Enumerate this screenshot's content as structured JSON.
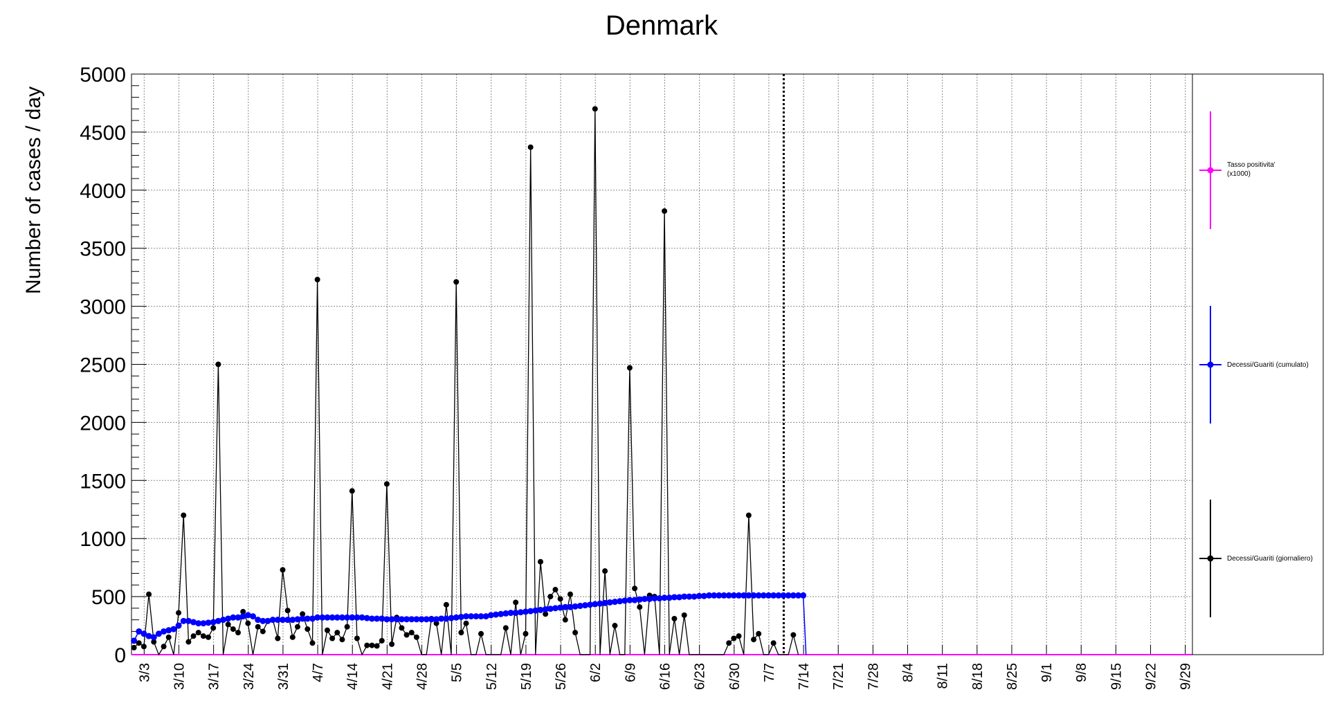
{
  "chart_data": {
    "type": "line",
    "title": "Denmark",
    "ylabel": "Number of cases / day",
    "xlabel": "",
    "ylim": [
      0,
      5000
    ],
    "y_ticks": [
      0,
      500,
      1000,
      1500,
      2000,
      2500,
      3000,
      3500,
      4000,
      4500,
      5000
    ],
    "grid": true,
    "x_tick_labels": [
      "3/3",
      "3/10",
      "3/17",
      "3/24",
      "3/31",
      "4/7",
      "4/14",
      "4/21",
      "4/28",
      "5/5",
      "5/12",
      "5/19",
      "5/26",
      "6/2",
      "6/9",
      "6/16",
      "6/23",
      "6/30",
      "7/7",
      "7/14",
      "7/21",
      "7/28",
      "8/4",
      "8/11",
      "8/18",
      "8/25",
      "9/1",
      "9/8",
      "9/15",
      "9/22",
      "9/29"
    ],
    "x_start": "3/1",
    "vertical_marker": "7/10",
    "legend_position": "right",
    "legend": [
      {
        "label": "Tasso positivita' (x1000)",
        "color": "#ff00ff"
      },
      {
        "label": "Decessi/Guariti (cumulato)",
        "color": "#0000ff"
      },
      {
        "label": "Decessi/Guariti (giornaliero)",
        "color": "#000000"
      }
    ],
    "series": [
      {
        "name": "Decessi/Guariti (giornaliero)",
        "color": "#000000",
        "values": [
          60,
          100,
          70,
          520,
          110,
          0,
          70,
          150,
          0,
          360,
          1200,
          110,
          160,
          190,
          160,
          150,
          230,
          2500,
          0,
          260,
          220,
          190,
          370,
          270,
          0,
          240,
          200,
          290,
          300,
          140,
          730,
          380,
          150,
          240,
          350,
          220,
          100,
          3230,
          0,
          210,
          140,
          190,
          130,
          240,
          1410,
          140,
          0,
          80,
          80,
          75,
          120,
          1470,
          90,
          320,
          230,
          170,
          190,
          150,
          0,
          0,
          310,
          270,
          0,
          430,
          0,
          3210,
          190,
          270,
          0,
          0,
          180,
          0,
          0,
          0,
          0,
          230,
          0,
          450,
          0,
          180,
          4370,
          0,
          800,
          350,
          500,
          560,
          480,
          300,
          520,
          190,
          0,
          0,
          0,
          4700,
          0,
          720,
          0,
          250,
          0,
          0,
          2470,
          570,
          410,
          0,
          510,
          500,
          0,
          3820,
          0,
          310,
          0,
          340,
          0,
          0,
          0,
          0,
          0,
          0,
          0,
          0,
          100,
          140,
          160,
          0,
          1200,
          130,
          180,
          0,
          0,
          100,
          0,
          0,
          0,
          170,
          0
        ]
      },
      {
        "name": "Decessi/Guariti (cumulato)",
        "color": "#0000ff",
        "values": [
          120,
          200,
          180,
          160,
          150,
          180,
          200,
          210,
          220,
          250,
          290,
          290,
          280,
          270,
          270,
          275,
          280,
          290,
          300,
          310,
          320,
          320,
          330,
          340,
          330,
          300,
          290,
          290,
          300,
          300,
          300,
          300,
          300,
          305,
          310,
          310,
          310,
          320,
          320,
          320,
          320,
          320,
          320,
          320,
          320,
          320,
          320,
          315,
          310,
          310,
          310,
          305,
          305,
          305,
          305,
          305,
          305,
          305,
          305,
          305,
          305,
          305,
          310,
          310,
          315,
          320,
          325,
          330,
          330,
          330,
          330,
          330,
          340,
          345,
          350,
          355,
          360,
          360,
          365,
          370,
          375,
          380,
          385,
          390,
          395,
          400,
          405,
          410,
          410,
          415,
          420,
          425,
          430,
          435,
          440,
          445,
          450,
          455,
          460,
          465,
          470,
          470,
          475,
          480,
          480,
          485,
          485,
          490,
          490,
          495,
          495,
          500,
          500,
          500,
          505,
          505,
          510,
          510,
          510,
          510,
          510,
          510,
          510,
          510,
          510,
          510,
          510,
          510,
          510,
          510,
          510,
          510,
          510,
          510,
          510,
          510
        ]
      },
      {
        "name": "Tasso positivita' (x1000)",
        "color": "#ff00ff",
        "values": [
          0,
          0
        ]
      }
    ]
  }
}
